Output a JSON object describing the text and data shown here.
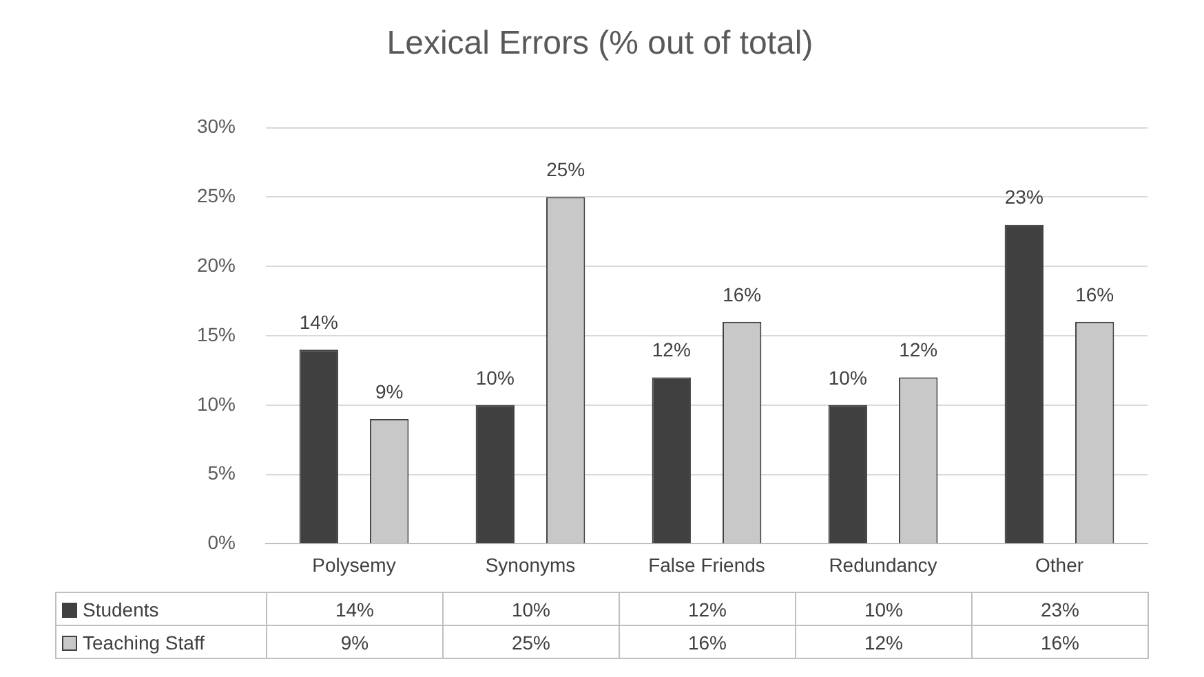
{
  "chart_data": {
    "type": "bar",
    "title": "Lexical Errors (% out of total)",
    "categories": [
      "Polysemy",
      "Synonyms",
      "False Friends",
      "Redundancy",
      "Other"
    ],
    "series": [
      {
        "name": "Students",
        "color": "#404040",
        "values": [
          14,
          10,
          12,
          10,
          23
        ],
        "value_labels": [
          "14%",
          "10%",
          "12%",
          "10%",
          "23%"
        ]
      },
      {
        "name": "Teaching Staff",
        "color": "#c8c8c8",
        "values": [
          9,
          25,
          16,
          12,
          16
        ],
        "value_labels": [
          "9%",
          "25%",
          "16%",
          "12%",
          "16%"
        ]
      }
    ],
    "ylim": [
      0,
      30
    ],
    "yticks": [
      {
        "value": 0,
        "label": "0%"
      },
      {
        "value": 5,
        "label": "5%"
      },
      {
        "value": 10,
        "label": "10%"
      },
      {
        "value": 15,
        "label": "15%"
      },
      {
        "value": 20,
        "label": "20%"
      },
      {
        "value": 25,
        "label": "25%"
      },
      {
        "value": 30,
        "label": "30%"
      }
    ],
    "grid": "y",
    "legend": "bottom"
  }
}
